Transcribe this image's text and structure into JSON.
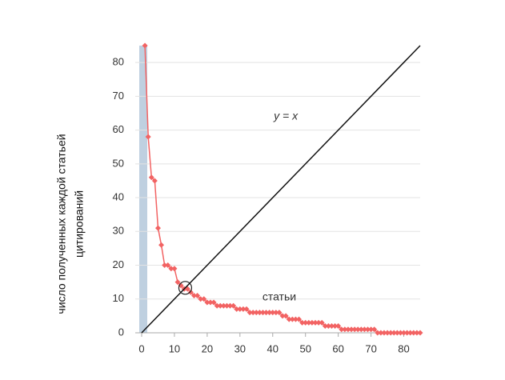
{
  "chart_data": {
    "type": "line",
    "y_label": [
      "число полученных каждой статьей",
      "цитирований"
    ],
    "xlim": [
      0,
      85
    ],
    "ylim": [
      0,
      85
    ],
    "xticks": [
      0,
      10,
      20,
      30,
      40,
      50,
      60,
      70,
      80
    ],
    "yticks": [
      0,
      10,
      20,
      30,
      40,
      50,
      60,
      70,
      80
    ],
    "grid": true,
    "series": [
      {
        "name": "статьи",
        "color": "#f26363",
        "x": [
          1,
          2,
          3,
          4,
          5,
          6,
          7,
          8,
          9,
          10,
          11,
          12,
          13,
          14,
          15,
          16,
          17,
          18,
          19,
          20,
          21,
          22,
          23,
          24,
          25,
          26,
          27,
          28,
          29,
          30,
          31,
          32,
          33,
          34,
          35,
          36,
          37,
          38,
          39,
          40,
          41,
          42,
          43,
          44,
          45,
          46,
          47,
          48,
          49,
          50,
          51,
          52,
          53,
          54,
          55,
          56,
          57,
          58,
          59,
          60,
          61,
          62,
          63,
          64,
          65,
          66,
          67,
          68,
          69,
          70,
          71,
          72,
          73,
          74,
          75,
          76,
          77,
          78,
          79,
          80,
          81,
          82,
          83,
          84,
          85
        ],
        "values": [
          85,
          58,
          46,
          45,
          31,
          26,
          20,
          20,
          19,
          19,
          15,
          14,
          13,
          13,
          12,
          11,
          11,
          10,
          10,
          9,
          9,
          9,
          8,
          8,
          8,
          8,
          8,
          8,
          7,
          7,
          7,
          7,
          6,
          6,
          6,
          6,
          6,
          6,
          6,
          6,
          6,
          6,
          5,
          5,
          4,
          4,
          4,
          4,
          3,
          3,
          3,
          3,
          3,
          3,
          3,
          2,
          2,
          2,
          2,
          2,
          1,
          1,
          1,
          1,
          1,
          1,
          1,
          1,
          1,
          1,
          1,
          0,
          0,
          0,
          0,
          0,
          0,
          0,
          0,
          0,
          0,
          0,
          0,
          0,
          0
        ]
      },
      {
        "name": "y = x",
        "color": "#111111",
        "x": [
          0,
          85
        ],
        "values": [
          0,
          85
        ]
      }
    ]
  }
}
